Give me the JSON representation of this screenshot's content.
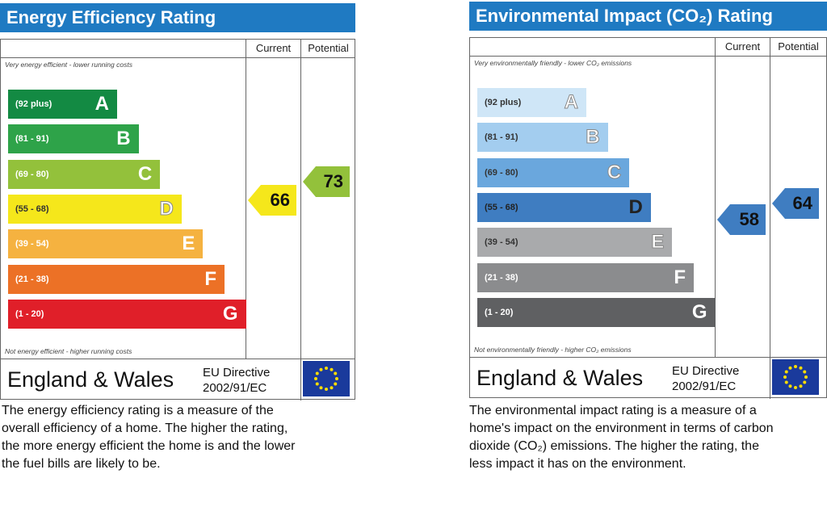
{
  "chart_data": [
    {
      "type": "bar",
      "title": "Energy Efficiency Rating",
      "column_headers": [
        "Current",
        "Potential"
      ],
      "top_note": "Very energy efficient - lower running costs",
      "bottom_note": "Not energy efficient - higher running costs",
      "categories": [
        "A",
        "B",
        "C",
        "D",
        "E",
        "F",
        "G"
      ],
      "ranges": [
        "(92 plus)",
        "(81 - 91)",
        "(69 - 80)",
        "(55 - 68)",
        "(39 - 54)",
        "(21 - 38)",
        "(1 - 20)"
      ],
      "band_colors": [
        "#138a43",
        "#2ea349",
        "#93c13b",
        "#f5e71b",
        "#f5b240",
        "#ec7126",
        "#e01f29"
      ],
      "band_text_colors": [
        "#ffffff",
        "#ffffff",
        "#ffffff",
        "#333333",
        "#ffffff",
        "#ffffff",
        "#ffffff"
      ],
      "current": {
        "value": 66,
        "color": "#f5e71b"
      },
      "potential": {
        "value": 73,
        "color": "#93c13b"
      },
      "footer": {
        "region": "England & Wales",
        "directive_line1": "EU Directive",
        "directive_line2": "2002/91/EC"
      },
      "description": [
        "The energy efficiency rating is a measure of the",
        "overall efficiency of a home. The higher the rating,",
        "the more energy efficient the home is and the lower",
        "the fuel bills are likely to be."
      ]
    },
    {
      "type": "bar",
      "title": "Environmental Impact (CO₂) Rating",
      "column_headers": [
        "Current",
        "Potential"
      ],
      "top_note": "Very environmentally friendly - lower CO₂ emissions",
      "bottom_note": "Not environmentally friendly - higher CO₂ emissions",
      "categories": [
        "A",
        "B",
        "C",
        "D",
        "E",
        "F",
        "G"
      ],
      "ranges": [
        "(92 plus)",
        "(81 - 91)",
        "(69 - 80)",
        "(55 - 68)",
        "(39 - 54)",
        "(21 - 38)",
        "(1 - 20)"
      ],
      "band_colors": [
        "#cfe6f7",
        "#a3cdef",
        "#6aa7dd",
        "#3f7dc1",
        "#a9aaac",
        "#8b8c8e",
        "#5f6062"
      ],
      "band_text_colors": [
        "#333333",
        "#333333",
        "#333333",
        "#222222",
        "#333333",
        "#ffffff",
        "#ffffff"
      ],
      "current": {
        "value": 58,
        "color": "#3f7dc1"
      },
      "potential": {
        "value": 64,
        "color": "#3f7dc1"
      },
      "footer": {
        "region": "England & Wales",
        "directive_line1": "EU Directive",
        "directive_line2": "2002/91/EC"
      },
      "description": [
        "The environmental impact rating is a measure of a",
        "home's impact on the environment in terms of carbon",
        "dioxide (CO₂) emissions. The higher the rating, the",
        "less impact it has on the environment."
      ]
    }
  ]
}
